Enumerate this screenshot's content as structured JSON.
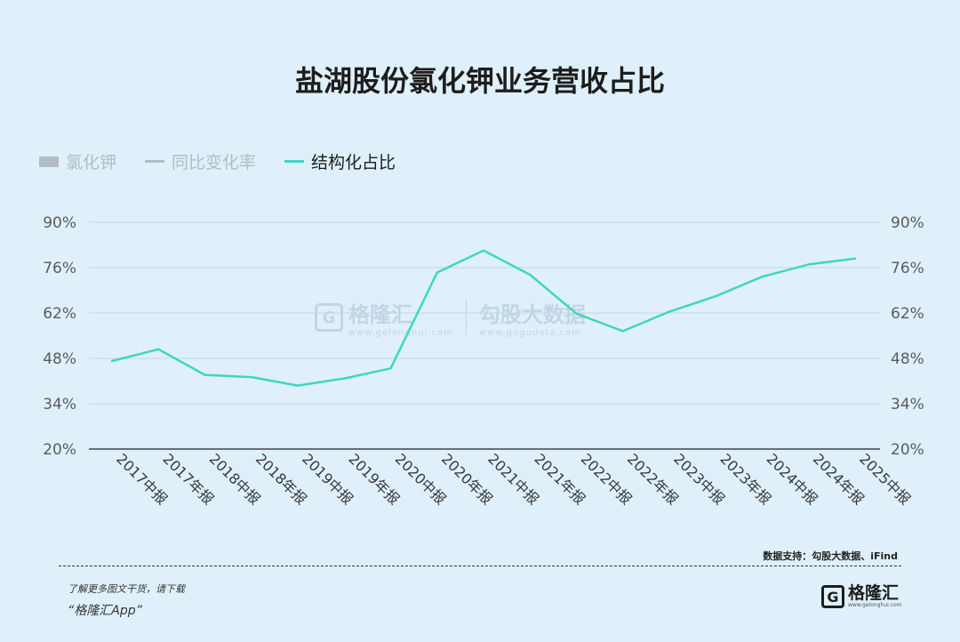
{
  "title": "盐湖股份氯化钾业务营收占比",
  "legend": [
    {
      "label": "氯化钾",
      "kind": "bar",
      "active": false
    },
    {
      "label": "同比变化率",
      "kind": "line",
      "active": false
    },
    {
      "label": "结构化占比",
      "kind": "line",
      "active": true
    }
  ],
  "chart_data": {
    "type": "line",
    "title": "盐湖股份氯化钾业务营收占比",
    "categories": [
      "2017中报",
      "2017年报",
      "2018中报",
      "2018年报",
      "2019中报",
      "2019年报",
      "2020中报",
      "2020年报",
      "2021中报",
      "2021年报",
      "2022中报",
      "2022年报",
      "2023中报",
      "2023年报",
      "2024中报",
      "2024年报",
      "2025中报"
    ],
    "series": [
      {
        "name": "结构化占比",
        "values": [
          47.2,
          50.8,
          42.9,
          42.2,
          39.6,
          41.8,
          44.9,
          74.5,
          81.3,
          73.8,
          61.8,
          56.4,
          62.4,
          67.2,
          73.2,
          77.0,
          78.8
        ]
      }
    ],
    "ylim": [
      20,
      90
    ],
    "yticks": [
      "20%",
      "34%",
      "48%",
      "62%",
      "76%",
      "90%"
    ],
    "grid": true,
    "legend_position": "top-left",
    "colors": {
      "active": "#3fd6c0",
      "inactive": "#b4bcc3",
      "grid": "#c5d6e3",
      "axis": "#444444"
    }
  },
  "watermark": {
    "brand": "格隆汇",
    "brand_sub": "www.gelonghui.com",
    "product": "勾股大数据",
    "product_sub": "www.gogudata.com"
  },
  "source": "数据支持：勾股大数据、iFind",
  "footer": {
    "promo_line1": "了解更多图文干货，请下载",
    "promo_line2": "“格隆汇App”",
    "logo_mark": "G",
    "logo_text": "格隆汇",
    "logo_sub": "www.gelonghui.com"
  }
}
